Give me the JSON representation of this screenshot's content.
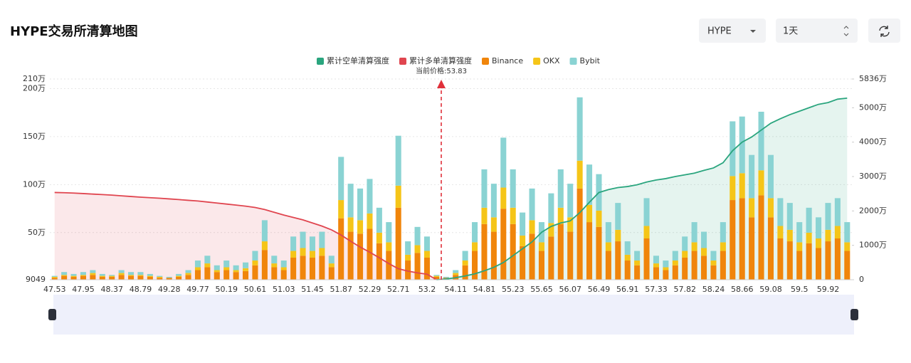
{
  "header": {
    "title": "HYPE交易所清算地图"
  },
  "controls": {
    "symbol": "HYPE",
    "period": "1天"
  },
  "chart_data": {
    "type": "bar",
    "annotation": "当前价格:53.83",
    "categories": [
      "47.53",
      null,
      null,
      "47.95",
      null,
      null,
      "48.37",
      null,
      null,
      "48.79",
      null,
      null,
      "49.28",
      null,
      null,
      "49.77",
      null,
      null,
      "50.19",
      null,
      null,
      "50.61",
      null,
      null,
      "51.03",
      null,
      null,
      "51.45",
      null,
      null,
      "51.87",
      null,
      null,
      "52.29",
      null,
      null,
      "52.71",
      null,
      null,
      "53.2",
      null,
      null,
      "54.11",
      null,
      null,
      "54.81",
      null,
      null,
      "55.23",
      null,
      null,
      "55.65",
      null,
      null,
      "56.07",
      null,
      null,
      "56.49",
      null,
      null,
      "56.91",
      null,
      null,
      "57.33",
      null,
      null,
      "57.82",
      null,
      null,
      "58.24",
      null,
      null,
      "58.66",
      null,
      null,
      "59.08",
      null,
      null,
      "59.5",
      null,
      null,
      "59.92",
      null,
      null
    ],
    "ylim": [
      9049,
      2100000
    ],
    "yticks": [
      9049,
      {
        "value": 500000,
        "label": "50万"
      },
      {
        "value": 1000000,
        "label": "100万"
      },
      {
        "value": 1500000,
        "label": "150万"
      },
      {
        "value": 2000000,
        "label": "200万"
      },
      {
        "value": 2100000,
        "label": "210万"
      }
    ],
    "y2lim": [
      0,
      58360000
    ],
    "y2ticks": [
      0,
      {
        "value": 10000000,
        "label": "1000万"
      },
      {
        "value": 20000000,
        "label": "2000万"
      },
      {
        "value": 30000000,
        "label": "3000万"
      },
      {
        "value": 40000000,
        "label": "4000万"
      },
      {
        "value": 50000000,
        "label": "5000万"
      },
      {
        "value": 58360000,
        "label": "5836万"
      }
    ],
    "grid": true,
    "series": [
      {
        "name": "累计空单清算强度",
        "type": "line",
        "axis": "y2",
        "color": "#2aa57e",
        "values": [
          null,
          null,
          null,
          null,
          null,
          null,
          null,
          null,
          null,
          null,
          null,
          null,
          null,
          null,
          null,
          null,
          null,
          null,
          null,
          null,
          null,
          null,
          null,
          null,
          null,
          null,
          null,
          null,
          null,
          null,
          null,
          null,
          null,
          null,
          null,
          null,
          null,
          null,
          null,
          null,
          0,
          200000,
          600000,
          1100000,
          1700000,
          2600000,
          3600000,
          5000000,
          7000000,
          9000000,
          11000000,
          13800000,
          15500000,
          16500000,
          17110000,
          19500000,
          22500000,
          25360000,
          26200000,
          26800000,
          27100000,
          27600000,
          28400000,
          29000000,
          29400000,
          30000000,
          30500000,
          31000000,
          31800000,
          32500000,
          34000000,
          37500000,
          40000000,
          41500000,
          43500000,
          45500000,
          46800000,
          48000000,
          49000000,
          50000000,
          51000000,
          51500000,
          52500000,
          52800000
        ]
      },
      {
        "name": "累计多单清算强度",
        "type": "line",
        "axis": "y2",
        "color": "#e0454f",
        "values": [
          25360000,
          25300000,
          25200000,
          25050000,
          24900000,
          24750000,
          24600000,
          24400000,
          24200000,
          24000000,
          23850000,
          23700000,
          23500000,
          23300000,
          23090000,
          22900000,
          22600000,
          22300000,
          22000000,
          21700000,
          21400000,
          21000000,
          20400000,
          19600000,
          18800000,
          18100000,
          17400000,
          16500000,
          15600000,
          14500000,
          13000000,
          11200000,
          9500000,
          8000000,
          6400000,
          4700000,
          3200000,
          2500000,
          2000000,
          1600000,
          0,
          null,
          null,
          null,
          null,
          null,
          null,
          null,
          null,
          null,
          null,
          null,
          null,
          null,
          null,
          null,
          null,
          null,
          null,
          null,
          null,
          null,
          null,
          null,
          null,
          null,
          null,
          null,
          null,
          null,
          null,
          null,
          null,
          null,
          null,
          null,
          null,
          null,
          null,
          null,
          null,
          null,
          null,
          null
        ]
      },
      {
        "name": "Binance",
        "type": "bar",
        "color": "#f0850b",
        "values": [
          20000,
          40000,
          30000,
          40000,
          50000,
          30000,
          30000,
          50000,
          40000,
          40000,
          30000,
          20000,
          20000,
          30000,
          50000,
          100000,
          130000,
          80000,
          100000,
          80000,
          90000,
          150000,
          310000,
          130000,
          100000,
          230000,
          250000,
          230000,
          250000,
          130000,
          640000,
          500000,
          480000,
          530000,
          380000,
          300000,
          750000,
          200000,
          280000,
          230000,
          30000,
          20000,
          50000,
          150000,
          300000,
          580000,
          500000,
          740000,
          580000,
          350000,
          480000,
          300000,
          450000,
          580000,
          500000,
          950000,
          600000,
          550000,
          300000,
          400000,
          200000,
          150000,
          430000,
          130000,
          100000,
          150000,
          230000,
          300000,
          250000,
          150000,
          300000,
          830000,
          850000,
          650000,
          880000,
          650000,
          430000,
          400000,
          300000,
          380000,
          330000,
          400000,
          430000,
          300000
        ]
      },
      {
        "name": "OKX",
        "type": "bar",
        "color": "#f5c518",
        "values": [
          10000,
          10000,
          10000,
          10000,
          20000,
          10000,
          10000,
          20000,
          10000,
          10000,
          10000,
          10000,
          0,
          10000,
          20000,
          30000,
          40000,
          20000,
          30000,
          20000,
          30000,
          50000,
          90000,
          40000,
          30000,
          70000,
          80000,
          70000,
          80000,
          40000,
          190000,
          150000,
          140000,
          160000,
          110000,
          90000,
          230000,
          60000,
          80000,
          70000,
          10000,
          0,
          20000,
          50000,
          90000,
          170000,
          150000,
          220000,
          170000,
          110000,
          140000,
          90000,
          140000,
          170000,
          150000,
          290000,
          180000,
          170000,
          90000,
          120000,
          60000,
          50000,
          130000,
          40000,
          30000,
          50000,
          70000,
          90000,
          80000,
          50000,
          90000,
          250000,
          260000,
          200000,
          260000,
          200000,
          130000,
          120000,
          90000,
          110000,
          100000,
          120000,
          130000,
          90000
        ]
      },
      {
        "name": "Bybit",
        "type": "bar",
        "color": "#8ad3d3",
        "values": [
          10000,
          30000,
          20000,
          30000,
          30000,
          20000,
          10000,
          30000,
          30000,
          30000,
          20000,
          10000,
          10000,
          20000,
          30000,
          70000,
          80000,
          50000,
          70000,
          50000,
          60000,
          100000,
          220000,
          80000,
          70000,
          150000,
          170000,
          150000,
          170000,
          80000,
          450000,
          350000,
          330000,
          360000,
          260000,
          210000,
          520000,
          140000,
          190000,
          150000,
          10000,
          10000,
          30000,
          100000,
          210000,
          400000,
          350000,
          520000,
          400000,
          240000,
          330000,
          210000,
          310000,
          400000,
          350000,
          660000,
          420000,
          380000,
          210000,
          280000,
          140000,
          100000,
          290000,
          80000,
          70000,
          100000,
          150000,
          210000,
          170000,
          100000,
          210000,
          570000,
          590000,
          450000,
          610000,
          450000,
          290000,
          280000,
          210000,
          260000,
          220000,
          280000,
          290000,
          210000
        ]
      }
    ]
  }
}
